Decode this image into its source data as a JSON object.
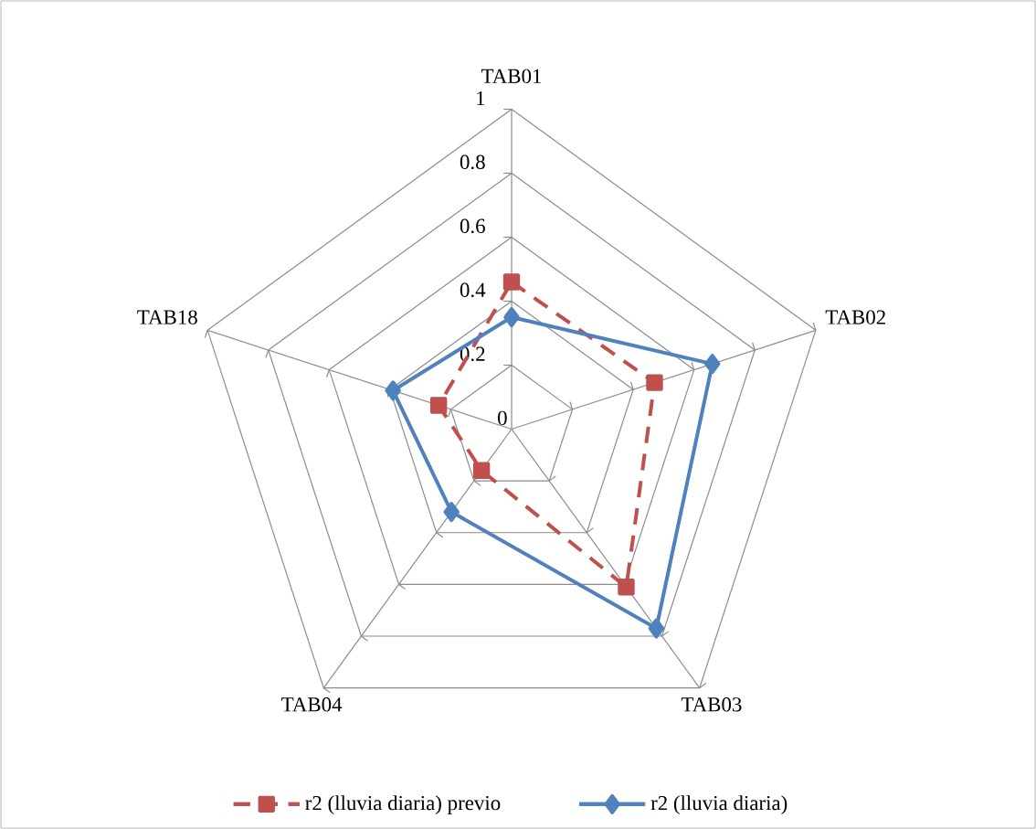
{
  "chart_data": {
    "type": "radar",
    "categories": [
      "TAB01",
      "TAB02",
      "TAB03",
      "TAB04",
      "TAB18"
    ],
    "ylim": [
      0,
      1
    ],
    "yticks": [
      0,
      0.2,
      0.4,
      0.6,
      0.8,
      1
    ],
    "grid": true,
    "legend": "bottom",
    "series": [
      {
        "name": "r2 (lluvia diaria) previo",
        "color": "#c0504d",
        "values": [
          0.46,
          0.47,
          0.61,
          0.16,
          0.24
        ],
        "marker": "square",
        "line_style": "dashed"
      },
      {
        "name": "r2 (lluvia diaria)",
        "color": "#4f81bd",
        "values": [
          0.35,
          0.66,
          0.77,
          0.32,
          0.39
        ],
        "marker": "diamond",
        "line_style": "solid"
      }
    ]
  }
}
